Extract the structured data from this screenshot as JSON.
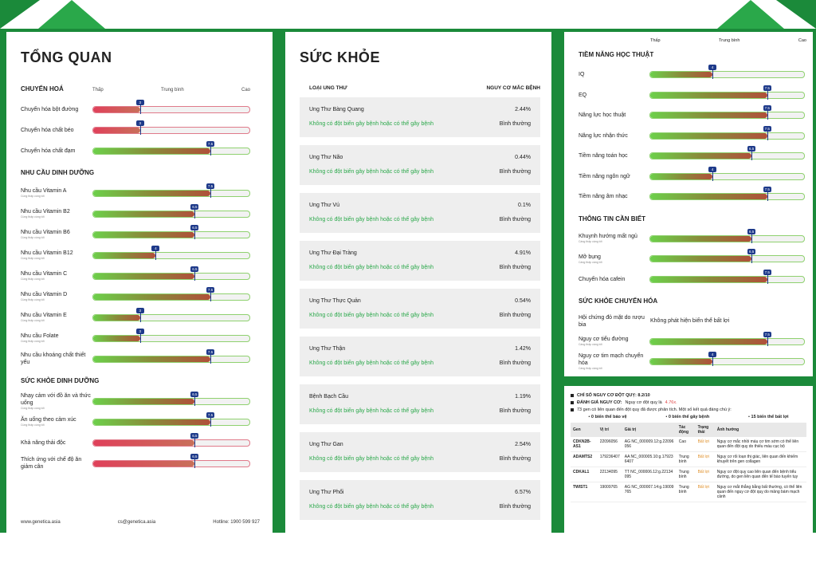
{
  "colors": {
    "brand_green": "#1b8a3a",
    "accent_green": "#2aa84a",
    "marker": "#1e3a8a",
    "risk_red": "#e04848",
    "warn_orange": "#e0902a"
  },
  "overview": {
    "title": "TỔNG QUAN",
    "scale": {
      "low": "Thấp",
      "mid": "Trung bình",
      "high": "Cao"
    },
    "sections": [
      {
        "title": "CHUYỂN HOÁ",
        "rows": [
          {
            "label": "Chuyển hóa bột đường",
            "sub": "",
            "level": 3,
            "dir": "down"
          },
          {
            "label": "Chuyển hóa chất béo",
            "sub": "",
            "level": 3,
            "dir": "down"
          },
          {
            "label": "Chuyển hóa chất đạm",
            "sub": "",
            "level": 7.5,
            "dir": "up"
          }
        ]
      },
      {
        "title": "NHU CẦU DINH DƯỠNG",
        "rows": [
          {
            "label": "Nhu cầu Vitamin A",
            "sub": "Cùng thấp cùng tốt",
            "level": 7.5,
            "dir": "up"
          },
          {
            "label": "Nhu cầu Vitamin B2",
            "sub": "Cùng thấp cùng tốt",
            "level": 6.5,
            "dir": "up"
          },
          {
            "label": "Nhu cầu Vitamin B6",
            "sub": "Cùng thấp cùng tốt",
            "level": 6.5,
            "dir": "up"
          },
          {
            "label": "Nhu cầu Vitamin B12",
            "sub": "Cùng thấp cùng tốt",
            "level": 4,
            "dir": "up"
          },
          {
            "label": "Nhu cầu Vitamin C",
            "sub": "Cùng thấp cùng tốt",
            "level": 6.5,
            "dir": "up"
          },
          {
            "label": "Nhu cầu Vitamin D",
            "sub": "Cùng thấp cùng tốt",
            "level": 7.5,
            "dir": "up"
          },
          {
            "label": "Nhu cầu Vitamin E",
            "sub": "Cùng thấp cùng tốt",
            "level": 3,
            "dir": "up"
          },
          {
            "label": "Nhu cầu Folate",
            "sub": "Cùng thấp cùng tốt",
            "level": 3,
            "dir": "up"
          },
          {
            "label": "Nhu cầu khoáng chất thiết yếu",
            "sub": "",
            "level": 7.5,
            "dir": "up"
          }
        ]
      },
      {
        "title": "SỨC KHỎE DINH DƯỠNG",
        "rows": [
          {
            "label": "Nhạy cảm với đồ ăn và thức uống",
            "sub": "Cùng thấp cùng tốt",
            "level": 6.5,
            "dir": "up"
          },
          {
            "label": "Ăn uống theo cảm xúc",
            "sub": "Cùng thấp cùng tốt",
            "level": 7.5,
            "dir": "up"
          },
          {
            "label": "Khả năng thải độc",
            "sub": "",
            "level": 6.5,
            "dir": "down"
          },
          {
            "label": "Thích ứng với chế độ ăn giảm cân",
            "sub": "",
            "level": 6.5,
            "dir": "down"
          }
        ]
      }
    ],
    "footer": {
      "website": "www.genetica.asia",
      "email": "cs@genetica.asia",
      "hotline": "Hotline: 1900 599 927"
    }
  },
  "health": {
    "title": "SỨC KHỎE",
    "col_type": "LOẠI UNG THƯ",
    "col_risk": "NGUY CƠ MẮC BỆNH",
    "items": [
      {
        "name": "Ung Thư Bàng Quang",
        "risk": "2.44%",
        "desc": "Không có đột biến gây bệnh hoặc có thể gây bệnh",
        "status": "Bình thường"
      },
      {
        "name": "Ung Thư Não",
        "risk": "0.44%",
        "desc": "Không có đột biến gây bệnh hoặc có thể gây bệnh",
        "status": "Bình thường"
      },
      {
        "name": "Ung Thư Vú",
        "risk": "0.1%",
        "desc": "Không có đột biến gây bệnh hoặc có thể gây bệnh",
        "status": "Bình thường"
      },
      {
        "name": "Ung Thư Đại Tràng",
        "risk": "4.91%",
        "desc": "Không có đột biến gây bệnh hoặc có thể gây bệnh",
        "status": "Bình thường"
      },
      {
        "name": "Ung Thư Thực Quản",
        "risk": "0.54%",
        "desc": "Không có đột biến gây bệnh hoặc có thể gây bệnh",
        "status": "Bình thường"
      },
      {
        "name": "Ung Thư Thận",
        "risk": "1.42%",
        "desc": "Không có đột biến gây bệnh hoặc có thể gây bệnh",
        "status": "Bình thường"
      },
      {
        "name": "Bệnh Bạch Cầu",
        "risk": "1.19%",
        "desc": "Không có đột biến gây bệnh hoặc có thể gây bệnh",
        "status": "Bình thường"
      },
      {
        "name": "Ung Thư Gan",
        "risk": "2.54%",
        "desc": "Không có đột biến gây bệnh hoặc có thể gây bệnh",
        "status": "Bình thường"
      },
      {
        "name": "Ung Thư Phổi",
        "risk": "6.57%",
        "desc": "Không có đột biến gây bệnh hoặc có thể gây bệnh",
        "status": "Bình thường"
      }
    ]
  },
  "potential": {
    "scale": {
      "low": "Thấp",
      "mid": "Trung bình",
      "high": "Cao"
    },
    "sections": [
      {
        "title": "TIỀM NĂNG HỌC THUẬT",
        "rows": [
          {
            "label": "IQ",
            "sub": "",
            "level": 4,
            "dir": "up"
          },
          {
            "label": "EQ",
            "sub": "",
            "level": 7.5,
            "dir": "up"
          },
          {
            "label": "Năng lực học thuật",
            "sub": "",
            "level": 7.5,
            "dir": "up"
          },
          {
            "label": "Năng lực nhận thức",
            "sub": "",
            "level": 7.5,
            "dir": "up"
          },
          {
            "label": "Tiềm năng toán học",
            "sub": "",
            "level": 6.5,
            "dir": "up"
          },
          {
            "label": "Tiềm năng ngôn ngữ",
            "sub": "",
            "level": 4,
            "dir": "up"
          },
          {
            "label": "Tiềm năng âm nhạc",
            "sub": "",
            "level": 7.5,
            "dir": "up"
          }
        ]
      },
      {
        "title": "THÔNG TIN CẦN BIẾT",
        "rows": [
          {
            "label": "Khuynh hướng mất ngủ",
            "sub": "Càng thấp càng tốt",
            "level": 6.5,
            "dir": "up"
          },
          {
            "label": "Mỡ bụng",
            "sub": "Càng thấp càng tốt",
            "level": 6.5,
            "dir": "up"
          },
          {
            "label": "Chuyển hóa cafein",
            "sub": "",
            "level": 7.5,
            "dir": "up"
          }
        ]
      },
      {
        "title": "SỨC KHỎE CHUYỂN HÓA",
        "rows": [
          {
            "label": "Hội chứng đỏ mặt do rượu bia",
            "sub": "",
            "text": "Không phát hiện biến thể bất lợi"
          },
          {
            "label": "Nguy cơ tiểu đường",
            "sub": "Càng thấp càng tốt",
            "level": 7.5,
            "dir": "up"
          },
          {
            "label": "Nguy cơ tim mạch chuyển hóa",
            "sub": "Càng thấp càng tốt",
            "level": 4,
            "dir": "up"
          }
        ]
      }
    ]
  },
  "stroke": {
    "index_label": "CHỈ SỐ NGUY CƠ ĐỘT QUỴ: 8.2/10",
    "assessment_label": "ĐÁNH GIÁ NGUY CƠ:",
    "assessment_text": "Nguy cơ đột quỵ là",
    "assessment_value": "4.76x.",
    "analysis": "73 gen có liên quan đến đột quỵ đã được phân tích. Một số kết quả đáng chú ý:",
    "counts": [
      "0 biến thể bảo vệ",
      "0 biến thể gây bệnh",
      "15 biến thể bất lợi"
    ],
    "headers": [
      "Gen",
      "Vị trí",
      "Giá trị",
      "Tác động",
      "Trạng thái",
      "Ảnh hưởng"
    ],
    "rows": [
      {
        "gene": "CDKN2B-AS1",
        "pos": "22096056",
        "val": "AG NC_000009.12:g.22096 056",
        "impact": "Cao",
        "state": "Bất lợi",
        "effect": "Nguy cơ mắc nhồi máu cơ tim sớm có thể liên quan đến đột quỵ do thiếu máu cục bộ"
      },
      {
        "gene": "ADAMTS2",
        "pos": "179236407",
        "val": "AA NC_000005.10:g.17923 6407",
        "impact": "Trung bình",
        "state": "Bất lợi",
        "effect": "Nguy cơ rối loạn thị giác, liên quan đến khiếm khuyết trên gen collagen"
      },
      {
        "gene": "CDKAL1",
        "pos": "22134095",
        "val": "TT NC_000006.12:g.22134 095",
        "impact": "Trung bình",
        "state": "Bất lợi",
        "effect": "Nguy cơ đột quỵ cao liên quan đến bệnh tiểu đường, do gen liên quan đến tế bào tuyến tụy"
      },
      {
        "gene": "TWIST1",
        "pos": "19009765",
        "val": "AG NC_000007.14:g.19009 765",
        "impact": "Trung bình",
        "state": "Bất lợi",
        "effect": "Nguy cơ mắt thẳng bằng bất thường, có thể liên quan đến nguy cơ đột quỵ do mảng bám mạch cảnh"
      }
    ]
  }
}
